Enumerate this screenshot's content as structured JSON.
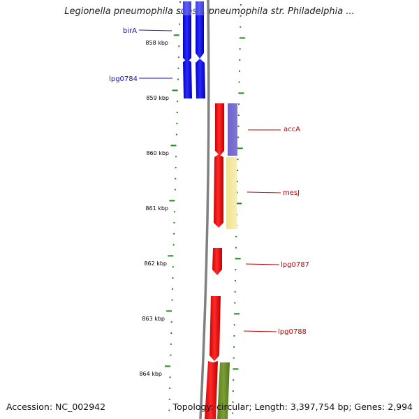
{
  "title": "Legionella pneumophila subsp. pneumophila str. Philadelphia ...",
  "accession": "Accession: NC_002942",
  "topology": "Topology: circular; Length: 3,397,754 bp; Genes: 2,994",
  "scale_labels": [
    "858 kbp",
    "859 kbp",
    "860 kbp",
    "861 kbp",
    "862 kbp",
    "863 kbp",
    "864 kbp"
  ],
  "colors": {
    "forward_strand": "#0000ee",
    "reverse_strand": "#ee0000",
    "ticks": "#1a8a1a",
    "backbone": "#808080",
    "label_blue": "#1010c0",
    "label_red": "#cc0000"
  },
  "genes": [
    {
      "name": "birA",
      "label_color": "label_blue"
    },
    {
      "name": "lpg0784",
      "label_color": "label_blue"
    },
    {
      "name": "accA",
      "label_color": "label_red"
    },
    {
      "name": "mesJ",
      "label_color": "label_red"
    },
    {
      "name": "lpg0787",
      "label_color": "label_red"
    },
    {
      "name": "lpg0788",
      "label_color": "label_red"
    }
  ]
}
